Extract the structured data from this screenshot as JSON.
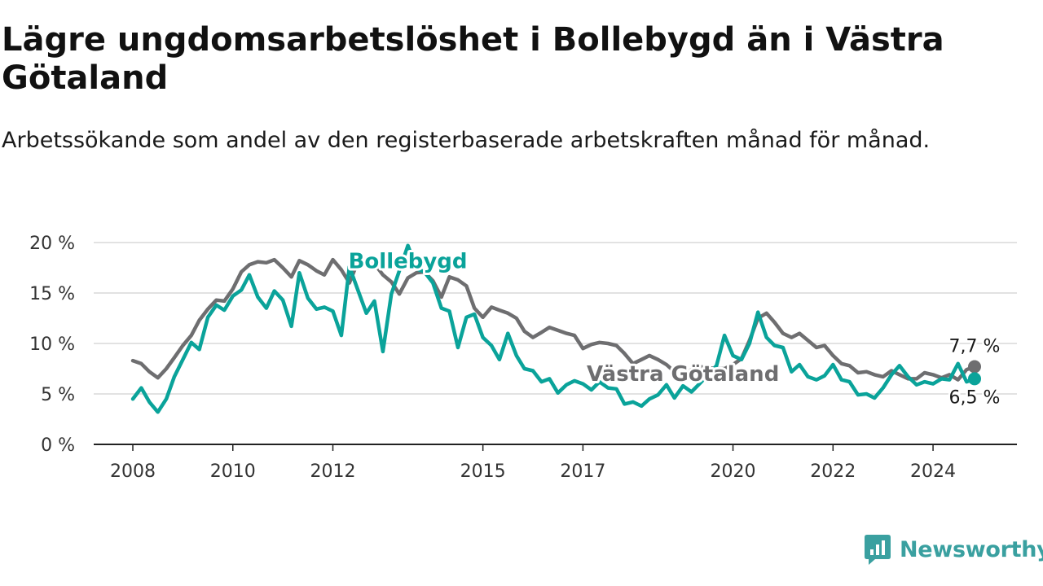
{
  "title": "Lägre ungdomsarbetslöshet i Bollebygd än i Västra Götaland",
  "subtitle": "Arbetssökande som andel av den registerbaserade arbetskraften månad för månad.",
  "brand": "Newsworthy",
  "colors": {
    "bollebygd": "#0aa39a",
    "vastra": "#6e6e70",
    "grid": "#d9d9d9",
    "axis": "#222222",
    "brand": "#3aa0a0"
  },
  "chart_data": {
    "type": "line",
    "x_range": [
      2008.0,
      2024.83
    ],
    "y_range": [
      0,
      20
    ],
    "yticks": [
      0,
      5,
      10,
      15,
      20
    ],
    "ytick_labels": [
      "0 %",
      "5 %",
      "10 %",
      "15 %",
      "20 %"
    ],
    "xticks": [
      2008,
      2010,
      2012,
      2015,
      2017,
      2020,
      2022,
      2024
    ],
    "xtick_labels": [
      "2008",
      "2010",
      "2012",
      "2015",
      "2017",
      "2020",
      "2022",
      "2024"
    ],
    "grid": true,
    "series": [
      {
        "name": "Västra Götaland",
        "color": "#6e6e70",
        "end_label": "7,7 %",
        "points": [
          [
            2008.0,
            8.3
          ],
          [
            2008.17,
            8.0
          ],
          [
            2008.33,
            7.2
          ],
          [
            2008.5,
            6.6
          ],
          [
            2008.67,
            7.5
          ],
          [
            2008.83,
            8.6
          ],
          [
            2009.0,
            9.8
          ],
          [
            2009.17,
            10.8
          ],
          [
            2009.33,
            12.3
          ],
          [
            2009.5,
            13.4
          ],
          [
            2009.67,
            14.3
          ],
          [
            2009.83,
            14.2
          ],
          [
            2010.0,
            15.4
          ],
          [
            2010.17,
            17.1
          ],
          [
            2010.33,
            17.8
          ],
          [
            2010.5,
            18.1
          ],
          [
            2010.67,
            18.0
          ],
          [
            2010.83,
            18.3
          ],
          [
            2011.0,
            17.5
          ],
          [
            2011.17,
            16.6
          ],
          [
            2011.33,
            18.2
          ],
          [
            2011.5,
            17.8
          ],
          [
            2011.67,
            17.2
          ],
          [
            2011.83,
            16.8
          ],
          [
            2012.0,
            18.3
          ],
          [
            2012.17,
            17.3
          ],
          [
            2012.33,
            16.0
          ],
          [
            2012.5,
            18.1
          ],
          [
            2012.67,
            17.9
          ],
          [
            2012.83,
            17.9
          ],
          [
            2013.0,
            16.8
          ],
          [
            2013.17,
            16.1
          ],
          [
            2013.33,
            14.9
          ],
          [
            2013.5,
            16.5
          ],
          [
            2013.67,
            17.0
          ],
          [
            2013.83,
            17.1
          ],
          [
            2014.0,
            16.2
          ],
          [
            2014.17,
            14.6
          ],
          [
            2014.33,
            16.6
          ],
          [
            2014.5,
            16.3
          ],
          [
            2014.67,
            15.7
          ],
          [
            2014.83,
            13.5
          ],
          [
            2015.0,
            12.6
          ],
          [
            2015.17,
            13.6
          ],
          [
            2015.33,
            13.3
          ],
          [
            2015.5,
            13.0
          ],
          [
            2015.67,
            12.5
          ],
          [
            2015.83,
            11.2
          ],
          [
            2016.0,
            10.6
          ],
          [
            2016.17,
            11.1
          ],
          [
            2016.33,
            11.6
          ],
          [
            2016.5,
            11.3
          ],
          [
            2016.67,
            11.0
          ],
          [
            2016.83,
            10.8
          ],
          [
            2017.0,
            9.5
          ],
          [
            2017.17,
            9.9
          ],
          [
            2017.33,
            10.1
          ],
          [
            2017.5,
            10.0
          ],
          [
            2017.67,
            9.8
          ],
          [
            2017.83,
            9.0
          ],
          [
            2018.0,
            8.0
          ],
          [
            2018.17,
            8.4
          ],
          [
            2018.33,
            8.8
          ],
          [
            2018.5,
            8.4
          ],
          [
            2018.67,
            7.9
          ],
          [
            2018.83,
            7.2
          ],
          [
            2019.0,
            6.8
          ],
          [
            2019.17,
            7.4
          ],
          [
            2019.33,
            7.7
          ],
          [
            2019.5,
            7.6
          ],
          [
            2019.67,
            7.5
          ],
          [
            2019.83,
            7.5
          ],
          [
            2020.0,
            7.9
          ],
          [
            2020.17,
            8.5
          ],
          [
            2020.33,
            10.3
          ],
          [
            2020.5,
            12.5
          ],
          [
            2020.67,
            13.0
          ],
          [
            2020.83,
            12.1
          ],
          [
            2021.0,
            11.0
          ],
          [
            2021.17,
            10.6
          ],
          [
            2021.33,
            11.0
          ],
          [
            2021.5,
            10.3
          ],
          [
            2021.67,
            9.6
          ],
          [
            2021.83,
            9.8
          ],
          [
            2022.0,
            8.8
          ],
          [
            2022.17,
            8.0
          ],
          [
            2022.33,
            7.8
          ],
          [
            2022.5,
            7.1
          ],
          [
            2022.67,
            7.2
          ],
          [
            2022.83,
            6.9
          ],
          [
            2023.0,
            6.7
          ],
          [
            2023.17,
            7.3
          ],
          [
            2023.33,
            6.9
          ],
          [
            2023.5,
            6.5
          ],
          [
            2023.67,
            6.5
          ],
          [
            2023.83,
            7.1
          ],
          [
            2024.0,
            6.9
          ],
          [
            2024.17,
            6.6
          ],
          [
            2024.33,
            6.9
          ],
          [
            2024.5,
            6.4
          ],
          [
            2024.67,
            7.4
          ],
          [
            2024.83,
            7.7
          ]
        ]
      },
      {
        "name": "Bollebygd",
        "color": "#0aa39a",
        "end_label": "6,5 %",
        "points": [
          [
            2008.0,
            4.5
          ],
          [
            2008.17,
            5.6
          ],
          [
            2008.33,
            4.2
          ],
          [
            2008.5,
            3.2
          ],
          [
            2008.67,
            4.5
          ],
          [
            2008.83,
            6.7
          ],
          [
            2009.0,
            8.4
          ],
          [
            2009.17,
            10.1
          ],
          [
            2009.33,
            9.4
          ],
          [
            2009.5,
            12.6
          ],
          [
            2009.67,
            13.8
          ],
          [
            2009.83,
            13.3
          ],
          [
            2010.0,
            14.7
          ],
          [
            2010.17,
            15.3
          ],
          [
            2010.33,
            16.8
          ],
          [
            2010.5,
            14.6
          ],
          [
            2010.67,
            13.5
          ],
          [
            2010.83,
            15.2
          ],
          [
            2011.0,
            14.3
          ],
          [
            2011.17,
            11.7
          ],
          [
            2011.33,
            17.0
          ],
          [
            2011.5,
            14.5
          ],
          [
            2011.67,
            13.4
          ],
          [
            2011.83,
            13.6
          ],
          [
            2012.0,
            13.2
          ],
          [
            2012.17,
            10.8
          ],
          [
            2012.33,
            17.6
          ],
          [
            2012.5,
            15.3
          ],
          [
            2012.67,
            13.0
          ],
          [
            2012.83,
            14.2
          ],
          [
            2013.0,
            9.2
          ],
          [
            2013.17,
            14.9
          ],
          [
            2013.33,
            17.2
          ],
          [
            2013.5,
            19.7
          ],
          [
            2013.67,
            17.4
          ],
          [
            2013.83,
            17.1
          ],
          [
            2014.0,
            16.0
          ],
          [
            2014.17,
            13.5
          ],
          [
            2014.33,
            13.2
          ],
          [
            2014.5,
            9.6
          ],
          [
            2014.67,
            12.6
          ],
          [
            2014.83,
            12.9
          ],
          [
            2015.0,
            10.6
          ],
          [
            2015.17,
            9.8
          ],
          [
            2015.33,
            8.4
          ],
          [
            2015.5,
            11.0
          ],
          [
            2015.67,
            8.8
          ],
          [
            2015.83,
            7.5
          ],
          [
            2016.0,
            7.3
          ],
          [
            2016.17,
            6.2
          ],
          [
            2016.33,
            6.5
          ],
          [
            2016.5,
            5.1
          ],
          [
            2016.67,
            5.9
          ],
          [
            2016.83,
            6.3
          ],
          [
            2017.0,
            6.0
          ],
          [
            2017.17,
            5.4
          ],
          [
            2017.33,
            6.2
          ],
          [
            2017.5,
            5.6
          ],
          [
            2017.67,
            5.5
          ],
          [
            2017.83,
            4.0
          ],
          [
            2018.0,
            4.2
          ],
          [
            2018.17,
            3.8
          ],
          [
            2018.33,
            4.5
          ],
          [
            2018.5,
            4.9
          ],
          [
            2018.67,
            5.9
          ],
          [
            2018.83,
            4.6
          ],
          [
            2019.0,
            5.8
          ],
          [
            2019.17,
            5.2
          ],
          [
            2019.33,
            6.0
          ],
          [
            2019.5,
            6.9
          ],
          [
            2019.67,
            7.8
          ],
          [
            2019.83,
            10.8
          ],
          [
            2020.0,
            8.8
          ],
          [
            2020.17,
            8.4
          ],
          [
            2020.33,
            10.0
          ],
          [
            2020.5,
            13.1
          ],
          [
            2020.67,
            10.6
          ],
          [
            2020.83,
            9.8
          ],
          [
            2021.0,
            9.6
          ],
          [
            2021.17,
            7.2
          ],
          [
            2021.33,
            7.9
          ],
          [
            2021.5,
            6.7
          ],
          [
            2021.67,
            6.4
          ],
          [
            2021.83,
            6.8
          ],
          [
            2022.0,
            7.9
          ],
          [
            2022.17,
            6.4
          ],
          [
            2022.33,
            6.2
          ],
          [
            2022.5,
            4.9
          ],
          [
            2022.67,
            5.0
          ],
          [
            2022.83,
            4.6
          ],
          [
            2023.0,
            5.6
          ],
          [
            2023.17,
            6.9
          ],
          [
            2023.33,
            7.8
          ],
          [
            2023.5,
            6.7
          ],
          [
            2023.67,
            5.9
          ],
          [
            2023.83,
            6.2
          ],
          [
            2024.0,
            6.0
          ],
          [
            2024.17,
            6.5
          ],
          [
            2024.33,
            6.4
          ],
          [
            2024.5,
            8.0
          ],
          [
            2024.67,
            6.2
          ],
          [
            2024.83,
            6.5
          ]
        ]
      }
    ],
    "annotations": [
      {
        "text": "Bollebygd",
        "series": "Bollebygd",
        "x": 2013.5,
        "y": 18.2
      },
      {
        "text": "Västra Götaland",
        "series": "Västra Götaland",
        "x": 2019.0,
        "y": 7.0
      }
    ]
  }
}
